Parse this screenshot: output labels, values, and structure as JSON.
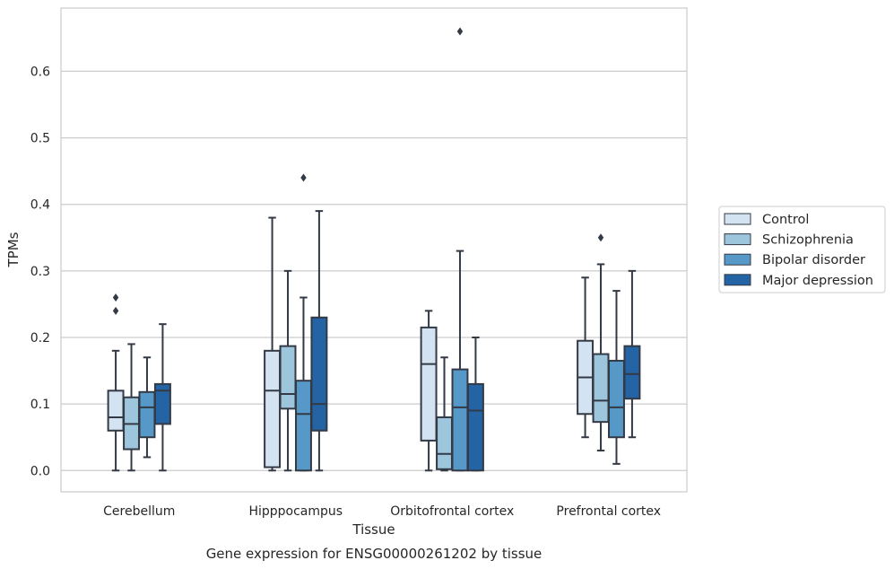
{
  "chart_data": {
    "type": "box",
    "title": "Gene expression for ENSG00000261202 by tissue",
    "xlabel": "Tissue",
    "ylabel": "TPMs",
    "ylim": [
      -0.032,
      0.695
    ],
    "yticks": [
      0.0,
      0.1,
      0.2,
      0.3,
      0.4,
      0.5,
      0.6
    ],
    "ytick_labels": [
      "0.0",
      "0.1",
      "0.2",
      "0.3",
      "0.4",
      "0.5",
      "0.6"
    ],
    "grid": true,
    "legend_position": "right",
    "categories": [
      "Cerebellum",
      "Hipppocampus",
      "Orbitofrontal cortex",
      "Prefrontal cortex"
    ],
    "series": [
      {
        "name": "Control",
        "color": "#d3e3f2",
        "boxes": [
          {
            "whislo": 0.0,
            "q1": 0.06,
            "med": 0.08,
            "q3": 0.12,
            "whishi": 0.18,
            "fliers": [
              0.24,
              0.26
            ]
          },
          {
            "whislo": 0.0,
            "q1": 0.005,
            "med": 0.12,
            "q3": 0.18,
            "whishi": 0.38,
            "fliers": []
          },
          {
            "whislo": 0.0,
            "q1": 0.045,
            "med": 0.16,
            "q3": 0.215,
            "whishi": 0.24,
            "fliers": []
          },
          {
            "whislo": 0.05,
            "q1": 0.085,
            "med": 0.14,
            "q3": 0.195,
            "whishi": 0.29,
            "fliers": []
          }
        ]
      },
      {
        "name": "Schizophrenia",
        "color": "#9dc5dc",
        "boxes": [
          {
            "whislo": 0.0,
            "q1": 0.032,
            "med": 0.07,
            "q3": 0.11,
            "whishi": 0.19,
            "fliers": []
          },
          {
            "whislo": 0.0,
            "q1": 0.093,
            "med": 0.115,
            "q3": 0.187,
            "whishi": 0.3,
            "fliers": []
          },
          {
            "whislo": 0.0,
            "q1": 0.002,
            "med": 0.025,
            "q3": 0.08,
            "whishi": 0.17,
            "fliers": []
          },
          {
            "whislo": 0.03,
            "q1": 0.073,
            "med": 0.105,
            "q3": 0.175,
            "whishi": 0.31,
            "fliers": [
              0.35
            ]
          }
        ]
      },
      {
        "name": "Bipolar disorder",
        "color": "#5698c8",
        "boxes": [
          {
            "whislo": 0.02,
            "q1": 0.05,
            "med": 0.095,
            "q3": 0.118,
            "whishi": 0.17,
            "fliers": []
          },
          {
            "whislo": 0.0,
            "q1": 0.0,
            "med": 0.085,
            "q3": 0.135,
            "whishi": 0.26,
            "fliers": [
              0.44
            ]
          },
          {
            "whislo": 0.0,
            "q1": 0.0,
            "med": 0.095,
            "q3": 0.152,
            "whishi": 0.33,
            "fliers": [
              0.66
            ]
          },
          {
            "whislo": 0.01,
            "q1": 0.05,
            "med": 0.095,
            "q3": 0.165,
            "whishi": 0.27,
            "fliers": []
          }
        ]
      },
      {
        "name": "Major depression",
        "color": "#2464a5",
        "boxes": [
          {
            "whislo": 0.0,
            "q1": 0.07,
            "med": 0.12,
            "q3": 0.13,
            "whishi": 0.22,
            "fliers": []
          },
          {
            "whislo": 0.0,
            "q1": 0.06,
            "med": 0.1,
            "q3": 0.23,
            "whishi": 0.39,
            "fliers": []
          },
          {
            "whislo": 0.0,
            "q1": 0.0,
            "med": 0.09,
            "q3": 0.13,
            "whishi": 0.2,
            "fliers": []
          },
          {
            "whislo": 0.05,
            "q1": 0.108,
            "med": 0.145,
            "q3": 0.187,
            "whishi": 0.3,
            "fliers": []
          }
        ]
      }
    ]
  }
}
